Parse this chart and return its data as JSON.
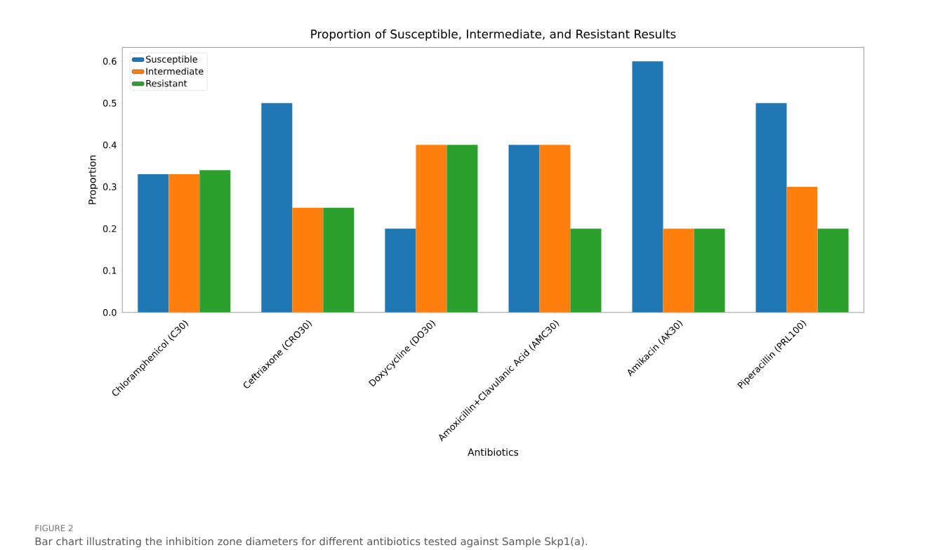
{
  "chart_data": {
    "type": "bar",
    "title": "Proportion of Susceptible, Intermediate, and Resistant Results",
    "xlabel": "Antibiotics",
    "ylabel": "Proportion",
    "categories": [
      "Chloramphenicol (C30)",
      "Ceftriaxone (CRO30)",
      "Doxycycline (DO30)",
      "Amoxicillin+Clavulanic Acid (AMC30)",
      "Amikacin (AK30)",
      "Piperacillin (PRL100)"
    ],
    "series": [
      {
        "name": "Susceptible",
        "color": "#1f77b4",
        "values": [
          0.33,
          0.5,
          0.2,
          0.4,
          0.6,
          0.5
        ]
      },
      {
        "name": "Intermediate",
        "color": "#ff7f0e",
        "values": [
          0.33,
          0.25,
          0.4,
          0.4,
          0.2,
          0.3
        ]
      },
      {
        "name": "Resistant",
        "color": "#2ca02c",
        "values": [
          0.34,
          0.25,
          0.4,
          0.2,
          0.2,
          0.2
        ]
      }
    ],
    "ylim": [
      0,
      0.633
    ],
    "yticks": [
      {
        "value": 0,
        "label": "0.0"
      },
      {
        "value": 0.1,
        "label": "0.1"
      },
      {
        "value": 0.2,
        "label": "0.2"
      },
      {
        "value": 0.3,
        "label": "0.3"
      },
      {
        "value": 0.4,
        "label": "0.4"
      },
      {
        "value": 0.5,
        "label": "0.5"
      },
      {
        "value": 0.6,
        "label": "0.6"
      }
    ],
    "legend": "top left",
    "grid": false,
    "annotations": [
      "FIGURE 2",
      "Bar chart illustrating the inhibition zone diameters for different antibiotics tested against Sample Skp1(a)."
    ]
  }
}
